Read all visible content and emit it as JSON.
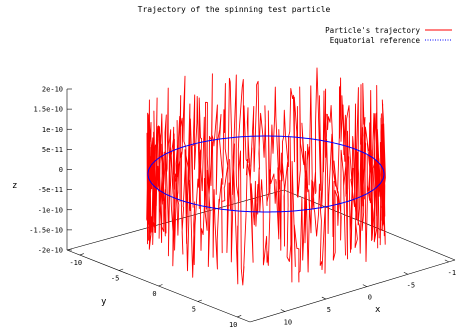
{
  "chart_data": {
    "type": "line",
    "title": "Trajectory of the spinning  test particle",
    "xlabel": "x",
    "ylabel": "y",
    "zlabel": "z",
    "x_ticks": [
      "-1",
      "-5",
      "0",
      "5",
      "10"
    ],
    "y_ticks": [
      "-10",
      "-5",
      "0",
      "5",
      "10"
    ],
    "z_ticks": [
      "-2e-10",
      "-1.5e-10",
      "-1e-10",
      "-5e-11",
      "0",
      "5e-11",
      "1e-10",
      "1.5e-10",
      "2e-10"
    ],
    "xlim": [
      -10,
      10
    ],
    "ylim": [
      -10,
      10
    ],
    "zlim": [
      -2e-10,
      2e-10
    ],
    "legend_position": "top-right",
    "grid": false,
    "series": [
      {
        "name": "Particle's trajectory",
        "color": "#ff0000",
        "style": "solid",
        "radius": 7,
        "z_amplitude": 1.9e-10,
        "note_samples": 720
      },
      {
        "name": "Equatorial reference",
        "color": "#0000ff",
        "style": "dotted",
        "radius": 7,
        "z": 0
      }
    ]
  }
}
